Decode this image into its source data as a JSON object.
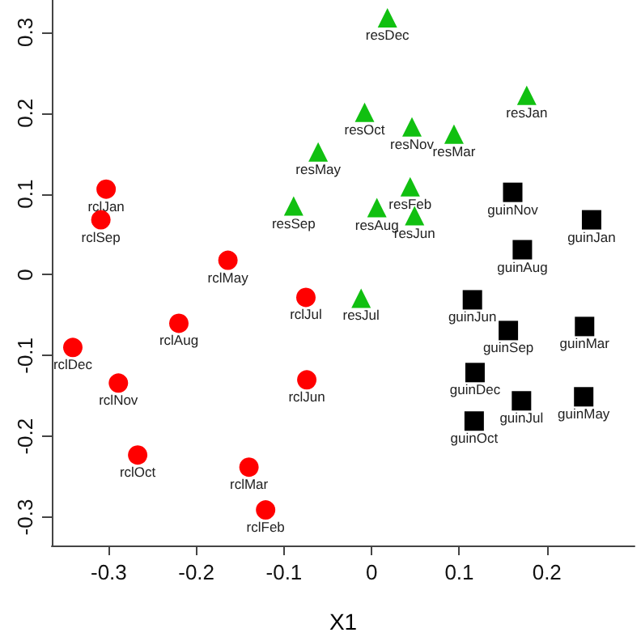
{
  "chart_data": {
    "type": "scatter",
    "xlabel": "X1",
    "xlim": [
      -0.365,
      0.3
    ],
    "ylim": [
      -0.335,
      0.34
    ],
    "xticks": [
      -0.3,
      -0.2,
      -0.1,
      0.0,
      0.1,
      0.2
    ],
    "yticks": [
      -0.3,
      -0.2,
      -0.1,
      0.0,
      0.1,
      0.2,
      0.3
    ],
    "grid": false,
    "series": [
      {
        "color": "#ff0000",
        "marker": "circle",
        "x": [
          -0.303,
          -0.309,
          -0.164,
          -0.075,
          -0.22,
          -0.341,
          -0.289,
          -0.267,
          -0.14,
          -0.121,
          -0.074
        ],
        "values": [
          0.106,
          0.068,
          0.018,
          -0.028,
          -0.06,
          -0.09,
          -0.134,
          -0.223,
          -0.238,
          -0.291,
          -0.13
        ]
      },
      {
        "color": "#11c011",
        "marker": "triangle",
        "x": [
          0.018,
          0.177,
          -0.008,
          0.046,
          0.094,
          -0.061,
          0.044,
          0.006,
          0.049,
          -0.089,
          -0.012
        ],
        "values": [
          0.318,
          0.222,
          0.201,
          0.183,
          0.174,
          0.152,
          0.109,
          0.083,
          0.073,
          0.085,
          -0.029
        ]
      },
      {
        "color": "#000000",
        "marker": "square",
        "x": [
          0.161,
          0.251,
          0.172,
          0.115,
          0.156,
          0.243,
          0.118,
          0.171,
          0.242,
          0.117
        ],
        "values": [
          0.102,
          0.068,
          0.031,
          -0.031,
          -0.069,
          -0.064,
          -0.121,
          -0.156,
          -0.151,
          -0.181
        ]
      }
    ],
    "annotations": [
      {
        "text": "rclJan",
        "x": -0.303,
        "y": 0.106
      },
      {
        "text": "rclSep",
        "x": -0.309,
        "y": 0.068
      },
      {
        "text": "rclMay",
        "x": -0.164,
        "y": 0.018
      },
      {
        "text": "rclJul",
        "x": -0.075,
        "y": -0.028
      },
      {
        "text": "rclAug",
        "x": -0.22,
        "y": -0.06
      },
      {
        "text": "rclDec",
        "x": -0.341,
        "y": -0.09
      },
      {
        "text": "rclNov",
        "x": -0.289,
        "y": -0.134
      },
      {
        "text": "rclOct",
        "x": -0.267,
        "y": -0.223
      },
      {
        "text": "rclMar",
        "x": -0.14,
        "y": -0.238
      },
      {
        "text": "rclFeb",
        "x": -0.121,
        "y": -0.291
      },
      {
        "text": "rclJun",
        "x": -0.074,
        "y": -0.13
      },
      {
        "text": "resDec",
        "x": 0.018,
        "y": 0.318
      },
      {
        "text": "resJan",
        "x": 0.177,
        "y": 0.222
      },
      {
        "text": "resOct",
        "x": -0.008,
        "y": 0.201
      },
      {
        "text": "resNov",
        "x": 0.046,
        "y": 0.183
      },
      {
        "text": "resMar",
        "x": 0.094,
        "y": 0.174
      },
      {
        "text": "resMay",
        "x": -0.061,
        "y": 0.152
      },
      {
        "text": "resFeb",
        "x": 0.044,
        "y": 0.109
      },
      {
        "text": "resAug",
        "x": 0.006,
        "y": 0.083
      },
      {
        "text": "resJun",
        "x": 0.049,
        "y": 0.073
      },
      {
        "text": "resSep",
        "x": -0.089,
        "y": 0.085
      },
      {
        "text": "resJul",
        "x": -0.012,
        "y": -0.029
      },
      {
        "text": "guinNov",
        "x": 0.161,
        "y": 0.102
      },
      {
        "text": "guinJan",
        "x": 0.251,
        "y": 0.068
      },
      {
        "text": "guinAug",
        "x": 0.172,
        "y": 0.031
      },
      {
        "text": "guinJun",
        "x": 0.115,
        "y": -0.031
      },
      {
        "text": "guinSep",
        "x": 0.156,
        "y": -0.069
      },
      {
        "text": "guinMar",
        "x": 0.243,
        "y": -0.064
      },
      {
        "text": "guinDec",
        "x": 0.118,
        "y": -0.121
      },
      {
        "text": "guinJul",
        "x": 0.171,
        "y": -0.156
      },
      {
        "text": "guinMay",
        "x": 0.242,
        "y": -0.151
      },
      {
        "text": "guinOct",
        "x": 0.117,
        "y": -0.181
      }
    ]
  }
}
